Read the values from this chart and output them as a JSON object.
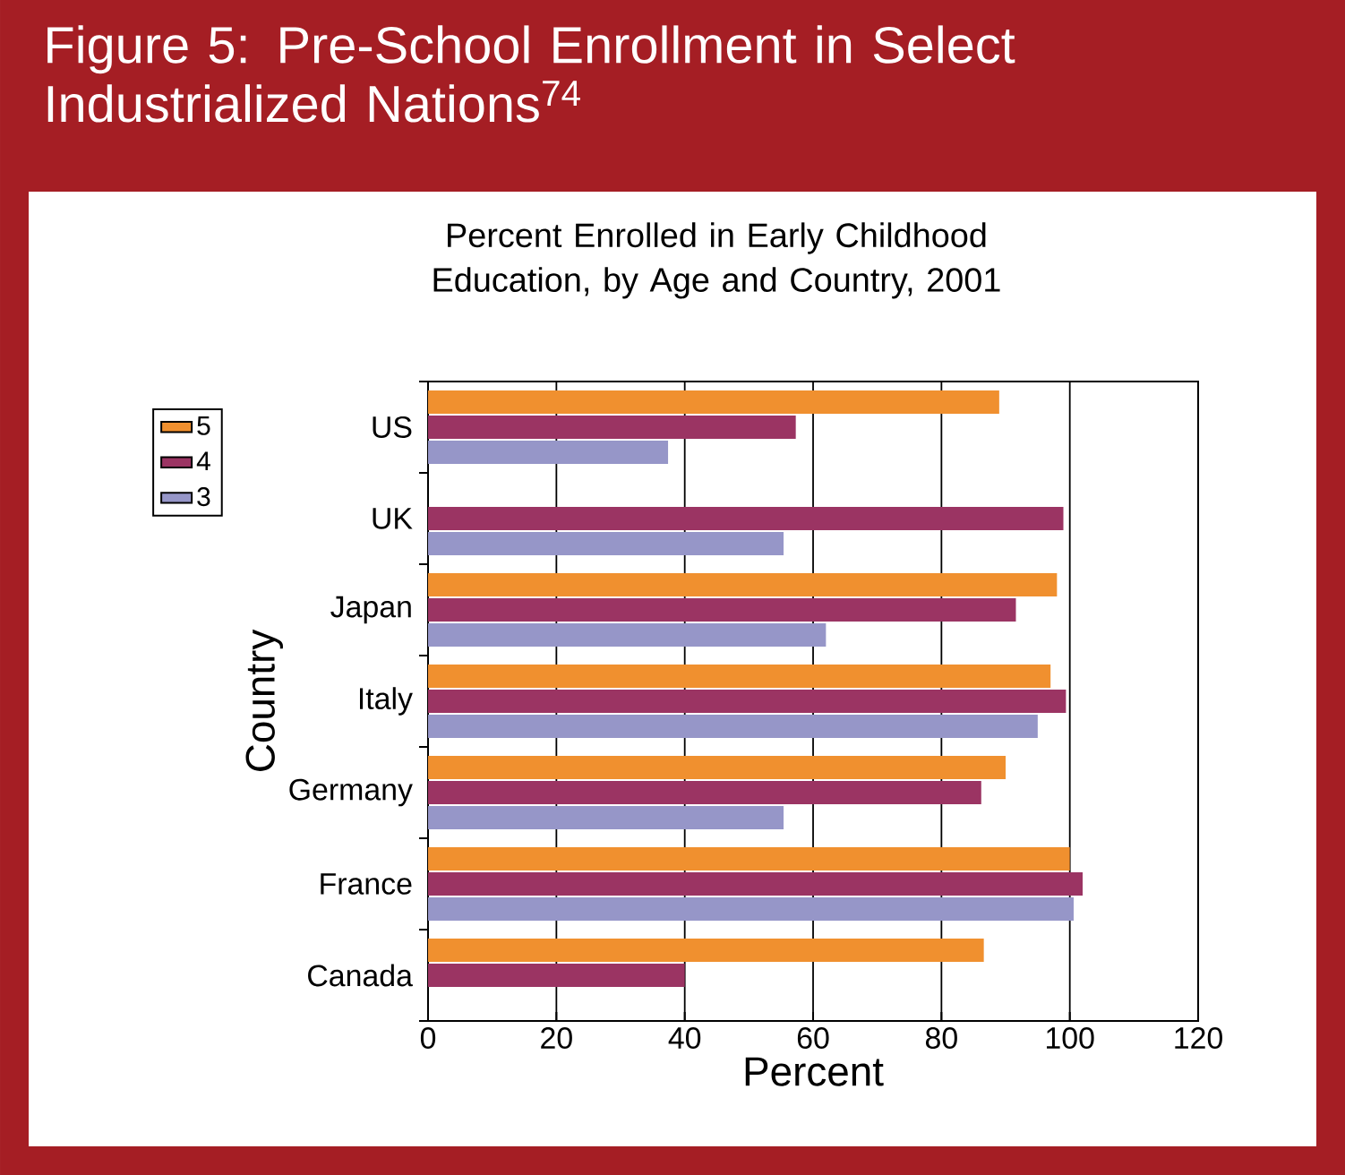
{
  "chart_data": {
    "type": "bar",
    "orientation": "horizontal",
    "title": "Figure 5: Pre-School Enrollment in Select Industrialized Nations$^{74}$",
    "subtitle": "Percent Enrolled in Early Childhood Education, by Age and Country, 2001",
    "xlabel": "Percent",
    "ylabel": "Country",
    "categories": [
      "US",
      "UK",
      "Japan",
      "Italy",
      "Germany",
      "France",
      "Canada"
    ],
    "series": [
      {
        "name": "5",
        "color": "#f0902f",
        "values": [
          89,
          null,
          98,
          97,
          90,
          100,
          86.6
        ]
      },
      {
        "name": "4",
        "color": "#9b3463",
        "values": [
          57.3,
          99,
          91.6,
          99.4,
          86.2,
          102,
          40
        ]
      },
      {
        "name": "3",
        "color": "#9696c8",
        "values": [
          37.4,
          55.4,
          62,
          95,
          55.4,
          100.6,
          null
        ]
      }
    ],
    "xlim": [
      0,
      120
    ],
    "xticks": [
      0,
      20,
      40,
      60,
      80,
      100,
      120
    ],
    "grid": "x",
    "legend": "left"
  }
}
